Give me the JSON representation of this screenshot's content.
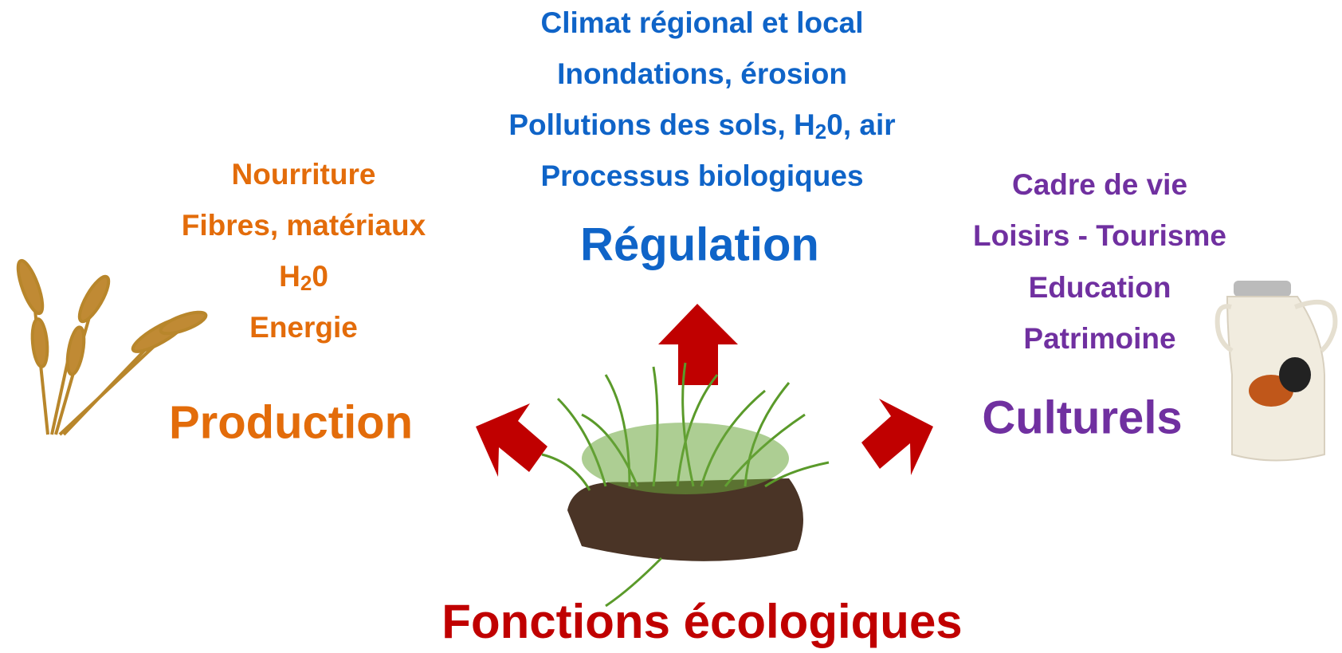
{
  "regulation": {
    "items": [
      "Climat régional et local",
      "Inondations, érosion",
      {
        "before": "Pollutions des sols, H",
        "sub": "2",
        "after": "0, air"
      },
      "Processus biologiques"
    ],
    "title": "Régulation"
  },
  "production": {
    "items": [
      "Nourriture",
      "Fibres, matériaux",
      {
        "before": "H",
        "sub": "2",
        "after": "0"
      },
      "Energie"
    ],
    "title": "Production"
  },
  "culturels": {
    "items": [
      "Cadre de vie",
      "Loisirs - Tourisme",
      "Education",
      "Patrimoine"
    ],
    "title": "Culturels"
  },
  "center": {
    "title": "Fonctions écologiques"
  }
}
